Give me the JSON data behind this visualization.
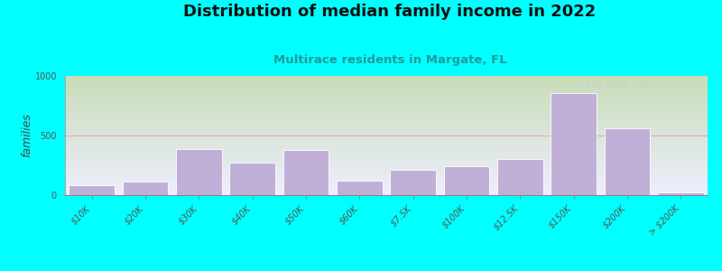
{
  "title": "Distribution of median family income in 2022",
  "subtitle": "Multirace residents in Margate, FL",
  "ylabel": "families",
  "background_outer": "#00FFFF",
  "bar_color": "#c0b0d8",
  "bar_edge_color": "#ffffff",
  "categories": [
    "$10K",
    "$20K",
    "$30K",
    "$40K",
    "$50K",
    "$60K",
    "$7.5K",
    "$100K",
    "$12.5K",
    "$150K",
    "$200K",
    "> $200K"
  ],
  "values": [
    80,
    115,
    390,
    270,
    380,
    120,
    210,
    245,
    300,
    855,
    560,
    25
  ],
  "ylim": [
    0,
    1000
  ],
  "yticks": [
    0,
    500,
    1000
  ],
  "watermark": "City-Data.com",
  "title_fontsize": 13,
  "subtitle_fontsize": 9.5,
  "ylabel_fontsize": 9,
  "tick_fontsize": 7,
  "gradient_top": "#c8ddb8",
  "gradient_bottom": "#eeeeff",
  "hline_color": "#dda8a8",
  "hline_y": 500
}
